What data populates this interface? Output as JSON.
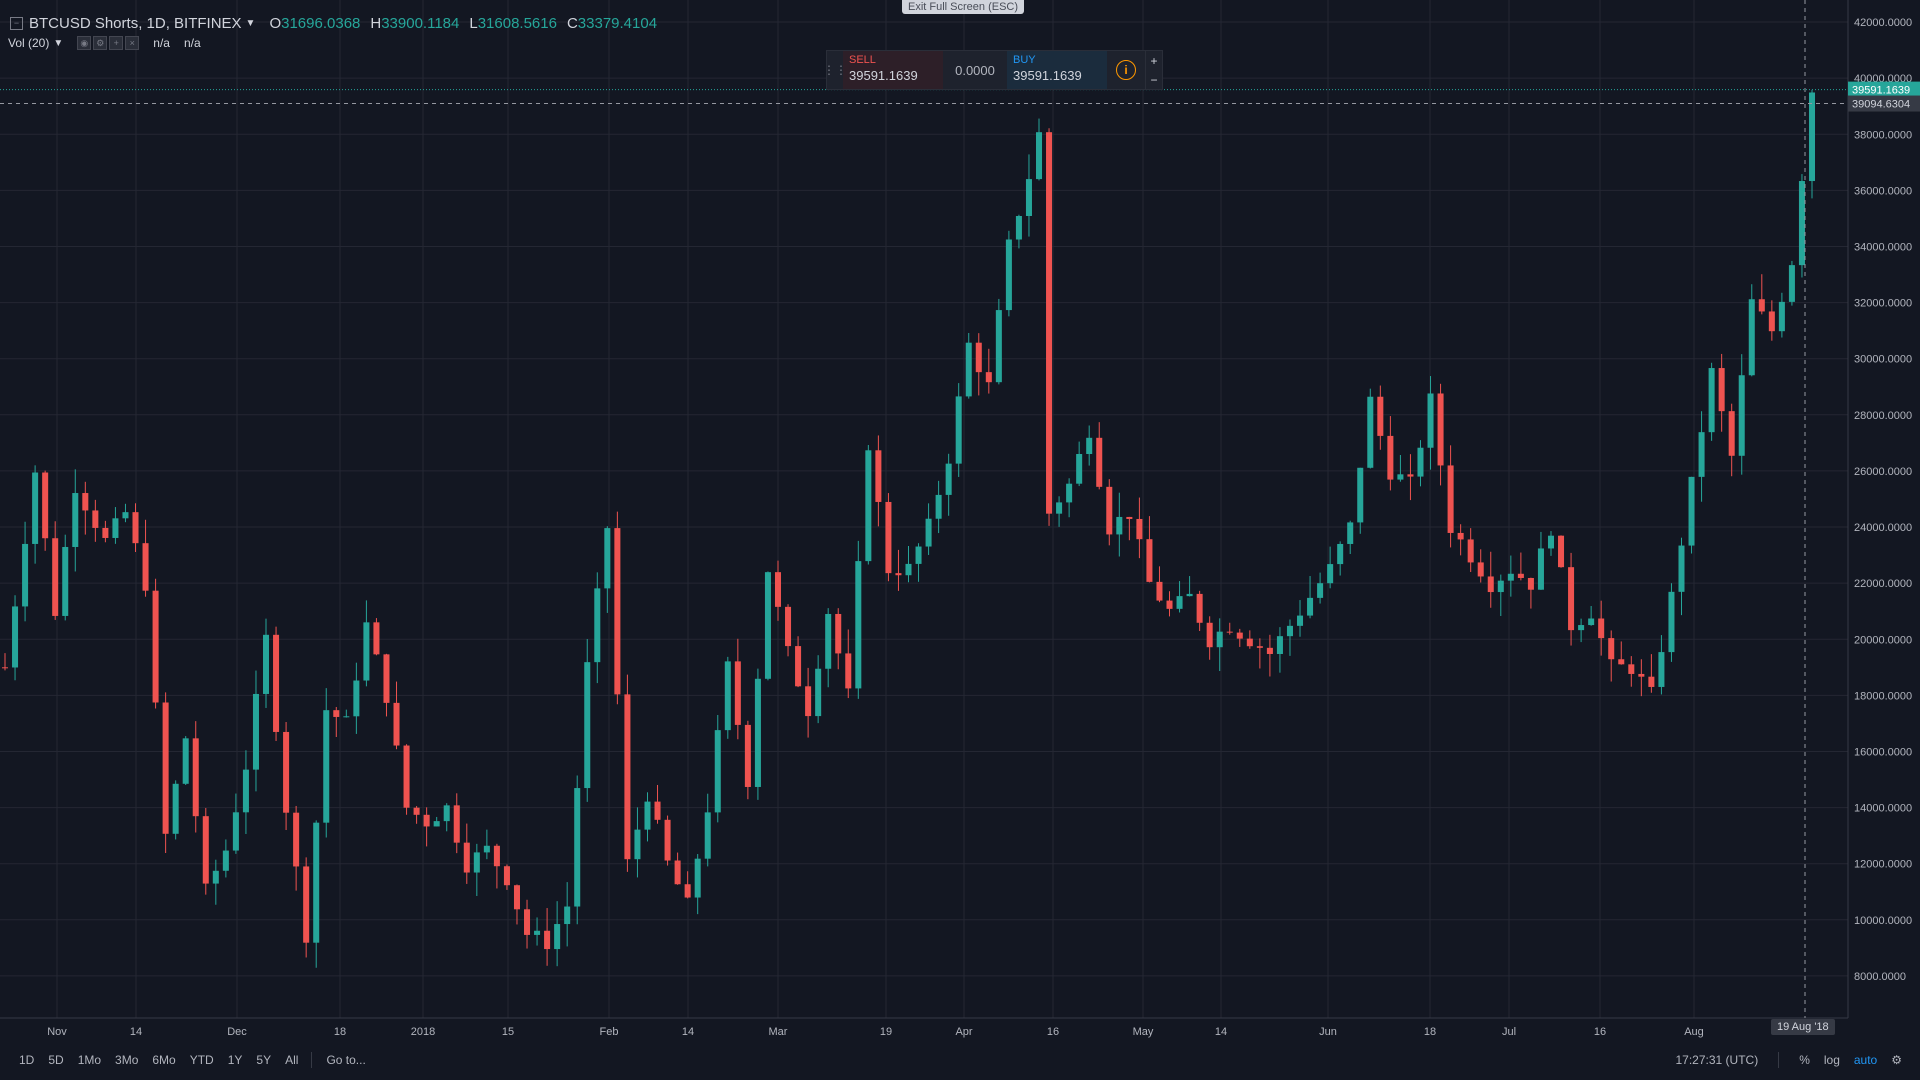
{
  "header": {
    "symbol": "BTCUSD Shorts, 1D, BITFINEX",
    "open_key": "O",
    "open": "31696.0368",
    "high_key": "H",
    "high": "33900.1184",
    "low_key": "L",
    "low": "31608.5616",
    "close_key": "C",
    "close": "33379.4104",
    "vol_label": "Vol (20)",
    "vol_val1": "n/a",
    "vol_val2": "n/a"
  },
  "exit_fullscreen": "Exit Full Screen (ESC)",
  "trade_panel": {
    "sell_label": "SELL",
    "sell_price": "39591.1639",
    "spread": "0.0000",
    "buy_label": "BUY",
    "buy_price": "39591.1639",
    "plus": "+",
    "minus": "−"
  },
  "bottom_bar": {
    "ranges": [
      "1D",
      "5D",
      "1Mo",
      "3Mo",
      "6Mo",
      "YTD",
      "1Y",
      "5Y",
      "All"
    ],
    "goto": "Go to...",
    "time": "17:27:31 (UTC)",
    "percent": "%",
    "log": "log",
    "auto": "auto"
  },
  "date_badge": "19 Aug '18",
  "colors": {
    "up": "#26a69a",
    "down": "#ef5350",
    "bg": "#131722",
    "grid": "#242733",
    "axis_text": "#b2b5be"
  },
  "chart_data": {
    "type": "candlestick",
    "title": "BTCUSD Shorts, 1D, BITFINEX",
    "ylim": [
      6500,
      42500
    ],
    "y_ticks": [
      "42000.0000",
      "40000.0000",
      "38000.0000",
      "36000.0000",
      "34000.0000",
      "32000.0000",
      "30000.0000",
      "28000.0000",
      "26000.0000",
      "24000.0000",
      "22000.0000",
      "20000.0000",
      "18000.0000",
      "16000.0000",
      "14000.0000",
      "12000.0000",
      "10000.0000",
      "8000.0000"
    ],
    "x_ticks": [
      "Nov",
      "14",
      "Dec",
      "18",
      "2018",
      "15",
      "Feb",
      "14",
      "Mar",
      "19",
      "Apr",
      "16",
      "May",
      "14",
      "Jun",
      "18",
      "Jul",
      "16",
      "Aug"
    ],
    "last_price_label": "39591.1639",
    "crosshair_price_label": "39094.6304",
    "close_path": [
      [
        0,
        19000
      ],
      [
        3,
        26000
      ],
      [
        5,
        21000
      ],
      [
        7,
        25500
      ],
      [
        10,
        23500
      ],
      [
        12,
        24500
      ],
      [
        14,
        22000
      ],
      [
        16,
        13000
      ],
      [
        18,
        16500
      ],
      [
        20,
        11000
      ],
      [
        22,
        12500
      ],
      [
        24,
        15500
      ],
      [
        26,
        20000
      ],
      [
        28,
        14000
      ],
      [
        30,
        9500
      ],
      [
        32,
        17500
      ],
      [
        34,
        17000
      ],
      [
        36,
        20500
      ],
      [
        38,
        18000
      ],
      [
        40,
        14000
      ],
      [
        42,
        13500
      ],
      [
        44,
        14000
      ],
      [
        46,
        12000
      ],
      [
        48,
        12500
      ],
      [
        50,
        11500
      ],
      [
        52,
        9500
      ],
      [
        54,
        9200
      ],
      [
        56,
        10500
      ],
      [
        58,
        19000
      ],
      [
        60,
        24000
      ],
      [
        62,
        12000
      ],
      [
        64,
        14500
      ],
      [
        66,
        12000
      ],
      [
        68,
        10500
      ],
      [
        70,
        14000
      ],
      [
        72,
        19000
      ],
      [
        74,
        15000
      ],
      [
        76,
        22500
      ],
      [
        78,
        19500
      ],
      [
        80,
        17500
      ],
      [
        82,
        21000
      ],
      [
        84,
        18000
      ],
      [
        86,
        27000
      ],
      [
        88,
        22500
      ],
      [
        90,
        22500
      ],
      [
        92,
        24000
      ],
      [
        94,
        26500
      ],
      [
        96,
        30500
      ],
      [
        98,
        29000
      ],
      [
        100,
        34000
      ],
      [
        102,
        36500
      ],
      [
        103,
        38000
      ],
      [
        104,
        24500
      ],
      [
        106,
        25500
      ],
      [
        108,
        27500
      ],
      [
        110,
        24000
      ],
      [
        112,
        24500
      ],
      [
        114,
        22000
      ],
      [
        116,
        21000
      ],
      [
        118,
        21500
      ],
      [
        120,
        20000
      ],
      [
        122,
        20500
      ],
      [
        124,
        20000
      ],
      [
        126,
        19500
      ],
      [
        128,
        20500
      ],
      [
        130,
        21500
      ],
      [
        132,
        22500
      ],
      [
        134,
        24000
      ],
      [
        136,
        28500
      ],
      [
        138,
        26000
      ],
      [
        140,
        25500
      ],
      [
        142,
        28500
      ],
      [
        144,
        24000
      ],
      [
        146,
        23000
      ],
      [
        148,
        22000
      ],
      [
        150,
        22500
      ],
      [
        152,
        22000
      ],
      [
        154,
        24000
      ],
      [
        156,
        20500
      ],
      [
        158,
        21000
      ],
      [
        160,
        19000
      ],
      [
        162,
        19000
      ],
      [
        164,
        18000
      ],
      [
        166,
        21500
      ],
      [
        168,
        25500
      ],
      [
        170,
        29500
      ],
      [
        172,
        26500
      ],
      [
        174,
        32000
      ],
      [
        176,
        31000
      ],
      [
        178,
        33500
      ],
      [
        180,
        39591
      ]
    ],
    "total_days": 181
  }
}
